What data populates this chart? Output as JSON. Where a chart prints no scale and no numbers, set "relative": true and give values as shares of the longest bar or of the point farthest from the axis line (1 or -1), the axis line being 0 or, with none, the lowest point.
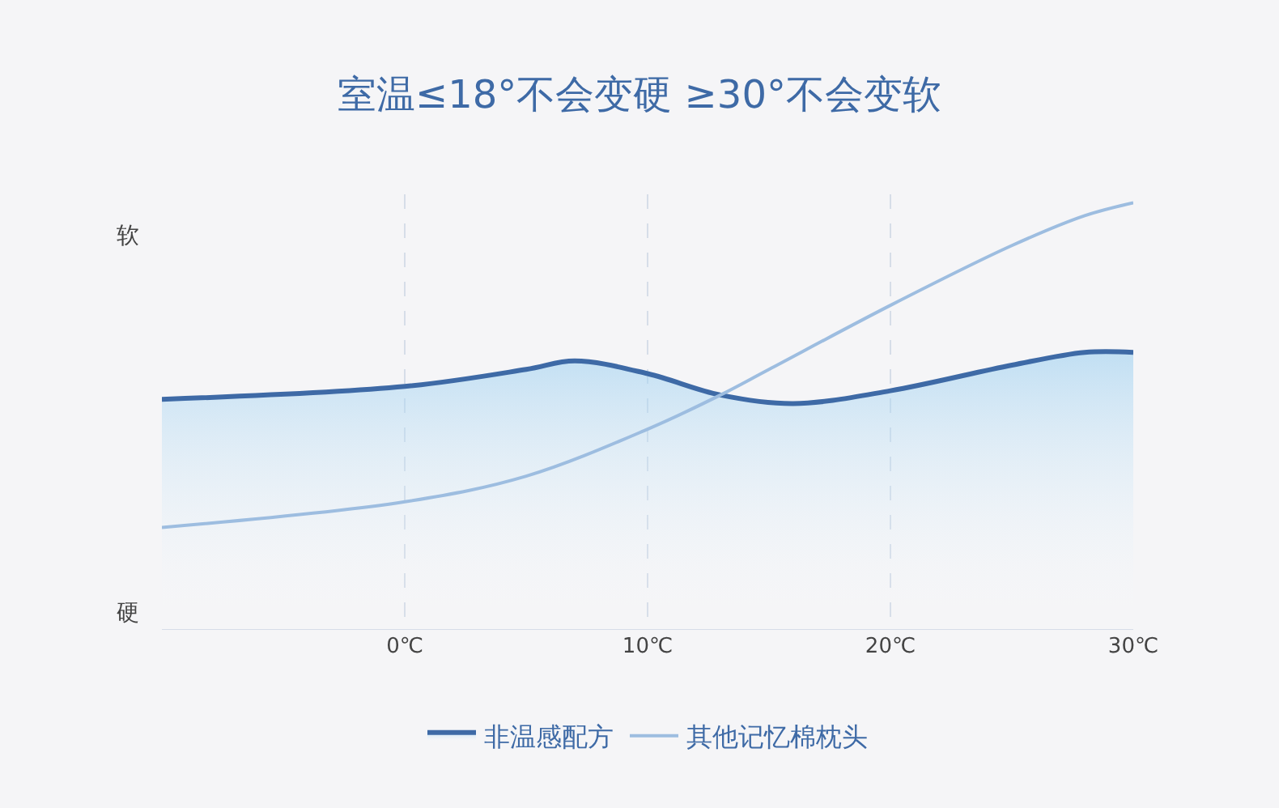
{
  "chart_data": {
    "type": "line",
    "title": "室温≤18°不会变硬 ≥30°不会变软",
    "relative": true,
    "annotations": [
      "软",
      "硬"
    ],
    "xlim": [
      -10,
      30
    ],
    "xticks": [
      {
        "value": 0,
        "label": "0℃"
      },
      {
        "value": 10,
        "label": "10℃"
      },
      {
        "value": 20,
        "label": "20℃"
      },
      {
        "value": 30,
        "label": "30℃"
      }
    ],
    "grid": "x",
    "legend": "bottom",
    "line_style": "solid",
    "series": [
      {
        "name": "非温感配方",
        "type": "area",
        "color": "#3e6aa6",
        "x": [
          -10,
          0,
          5,
          7,
          10,
          13,
          16,
          20,
          25,
          28,
          30
        ],
        "values": [
          0.54,
          0.57,
          0.61,
          0.63,
          0.6,
          0.55,
          0.53,
          0.56,
          0.62,
          0.65,
          0.65
        ]
      },
      {
        "name": "其他记忆棉枕头",
        "color": "#9dbde0",
        "x": [
          -10,
          0,
          5,
          10,
          13,
          15,
          20,
          25,
          28,
          30
        ],
        "values": [
          0.24,
          0.3,
          0.36,
          0.47,
          0.55,
          0.61,
          0.76,
          0.9,
          0.97,
          1
        ]
      }
    ]
  }
}
